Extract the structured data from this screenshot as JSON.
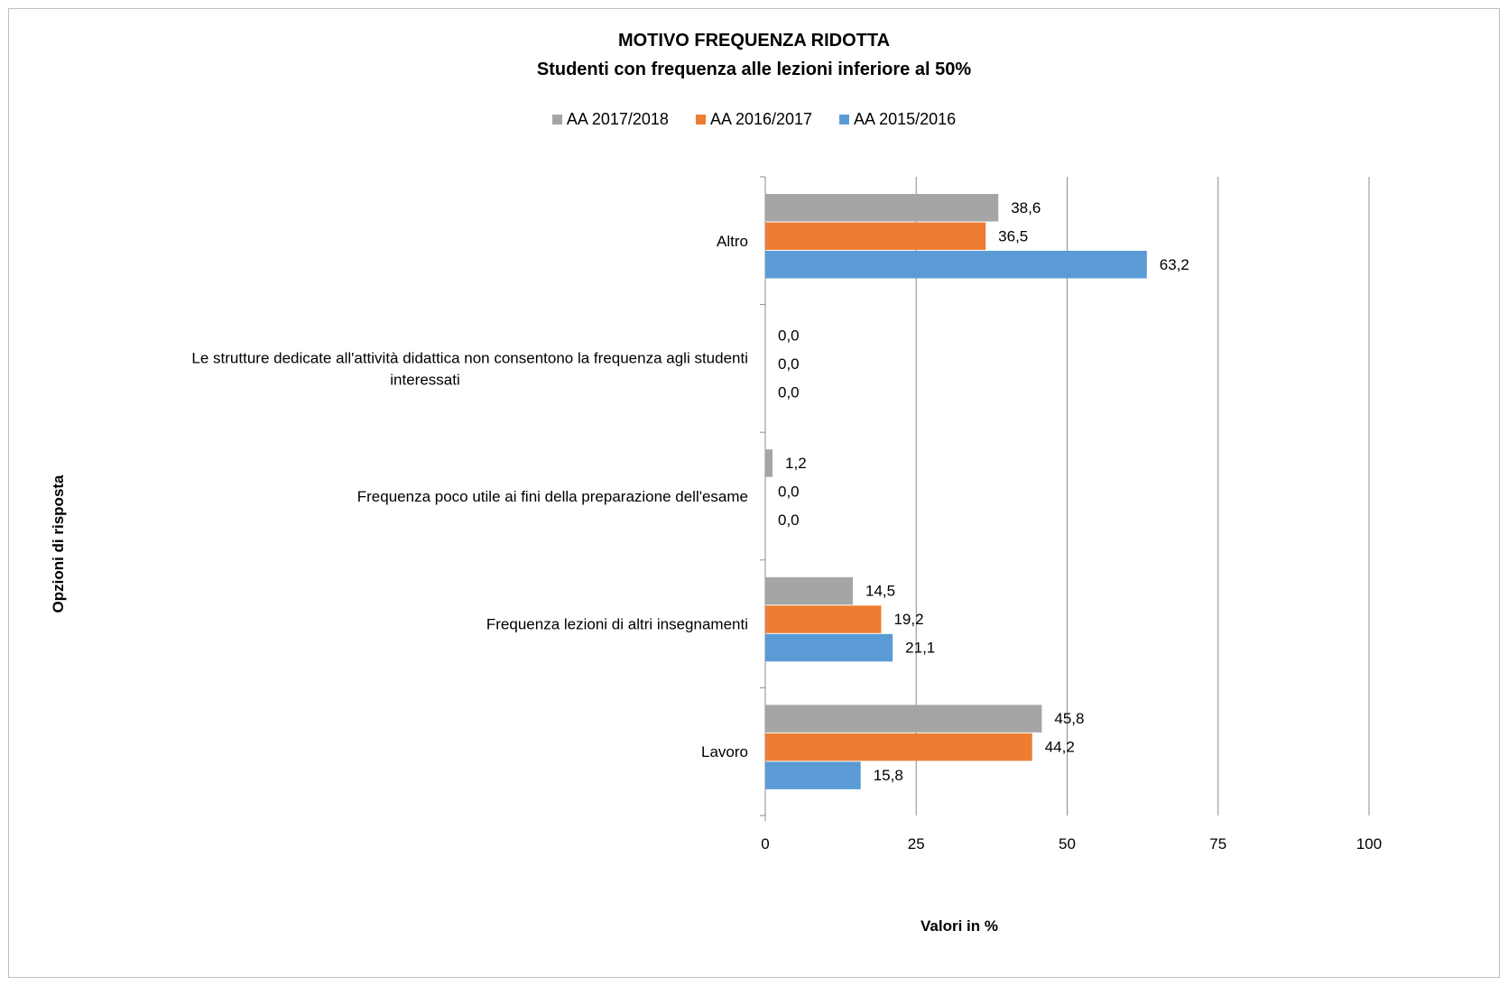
{
  "chart_data": {
    "type": "bar",
    "orientation": "horizontal",
    "title": "MOTIVO FREQUENZA RIDOTTA",
    "subtitle": "Studenti con frequenza alle lezioni  inferiore  al 50%",
    "xlabel": "Valori in %",
    "ylabel": "Opzioni di risposta",
    "xlim": [
      0,
      100
    ],
    "xticks": [
      0,
      25,
      50,
      75,
      100
    ],
    "grid": "vertical",
    "legend_position": "top",
    "categories": [
      "Altro",
      "Le strutture dedicate all'attività didattica non consentono la frequenza agli studenti interessati",
      "Frequenza poco utile ai fini della preparazione dell'esame",
      "Frequenza lezioni di altri insegnamenti",
      "Lavoro"
    ],
    "category_lines": [
      [
        "Altro"
      ],
      [
        "Le strutture dedicate all'attività didattica non consentono la frequenza agli studenti",
        "interessati"
      ],
      [
        "Frequenza poco utile ai fini della preparazione dell'esame"
      ],
      [
        "Frequenza lezioni di altri insegnamenti"
      ],
      [
        "Lavoro"
      ]
    ],
    "series": [
      {
        "name": "AA 2017/2018",
        "color": "#a5a5a5",
        "values": [
          38.6,
          0.0,
          1.2,
          14.5,
          45.8
        ],
        "labels": [
          "38,6",
          "0,0",
          "1,2",
          "14,5",
          "45,8"
        ]
      },
      {
        "name": "AA 2016/2017",
        "color": "#ed7d31",
        "values": [
          36.5,
          0.0,
          0.0,
          19.2,
          44.2
        ],
        "labels": [
          "36,5",
          "0,0",
          "0,0",
          "19,2",
          "44,2"
        ]
      },
      {
        "name": "AA 2015/2016",
        "color": "#5b9bd5",
        "values": [
          63.2,
          0.0,
          0.0,
          21.1,
          15.8
        ],
        "labels": [
          "63,2",
          "0,0",
          "0,0",
          "21,1",
          "15,8"
        ]
      }
    ]
  }
}
